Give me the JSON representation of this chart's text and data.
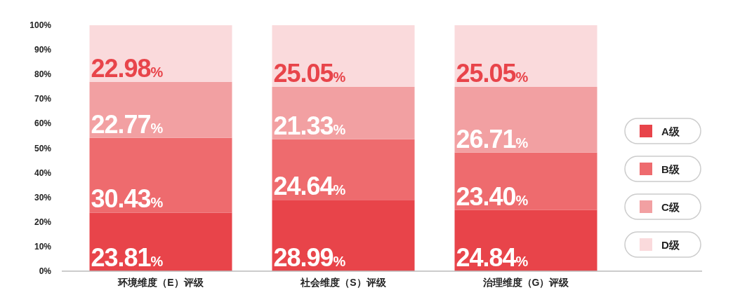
{
  "chart_data": {
    "type": "bar",
    "stacked": true,
    "categories": [
      "环境维度（E）评级",
      "社会维度（S）评级",
      "治理维度（G）评级"
    ],
    "series": [
      {
        "name": "A级",
        "color": "#e8444a",
        "values": [
          23.81,
          28.99,
          24.84
        ],
        "value_labels": [
          "23.81%",
          "28.99%",
          "24.84%"
        ]
      },
      {
        "name": "B级",
        "color": "#ee6b6e",
        "values": [
          30.43,
          24.64,
          23.4
        ],
        "value_labels": [
          "30.43%",
          "24.64%",
          "23.40%"
        ]
      },
      {
        "name": "C级",
        "color": "#f2a0a2",
        "values": [
          22.77,
          21.33,
          26.71
        ],
        "value_labels": [
          "22.77%",
          "21.33%",
          "26.71%"
        ]
      },
      {
        "name": "D级",
        "color": "#fadadc",
        "values": [
          22.98,
          25.05,
          25.05
        ],
        "value_labels": [
          "22.98%",
          "25.05%",
          "25.05%"
        ]
      }
    ],
    "ylim": [
      0,
      100
    ],
    "yticks": [
      {
        "value": 0,
        "label": "0%"
      },
      {
        "value": 10,
        "label": "10%"
      },
      {
        "value": 20,
        "label": "20%"
      },
      {
        "value": 30,
        "label": "30%"
      },
      {
        "value": 40,
        "label": "40%"
      },
      {
        "value": 50,
        "label": "50%"
      },
      {
        "value": 60,
        "label": "60%"
      },
      {
        "value": 70,
        "label": "70%"
      },
      {
        "value": 80,
        "label": "80%"
      },
      {
        "value": 90,
        "label": "90%"
      },
      {
        "value": 100,
        "label": "100%"
      }
    ],
    "legend": "right",
    "grid": false
  }
}
